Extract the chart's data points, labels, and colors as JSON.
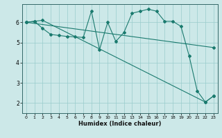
{
  "xlabel": "Humidex (Indice chaleur)",
  "bg_color": "#cce8e8",
  "grid_color": "#99cccc",
  "line_color": "#1a7a6e",
  "xlim": [
    -0.5,
    23.5
  ],
  "ylim": [
    1.5,
    6.9
  ],
  "xticks": [
    0,
    1,
    2,
    3,
    4,
    5,
    6,
    7,
    8,
    9,
    10,
    11,
    12,
    13,
    14,
    15,
    16,
    17,
    18,
    19,
    20,
    21,
    22,
    23
  ],
  "yticks": [
    2,
    3,
    4,
    5,
    6
  ],
  "line1_x": [
    0,
    1,
    2,
    3,
    4,
    5,
    6,
    7,
    8,
    9,
    10,
    11,
    12,
    13,
    14,
    15,
    16,
    17,
    18,
    19,
    20,
    21,
    22,
    23
  ],
  "line1_y": [
    6.0,
    6.05,
    5.7,
    5.4,
    5.35,
    5.3,
    5.28,
    5.25,
    6.55,
    4.65,
    6.0,
    5.05,
    5.5,
    6.45,
    6.55,
    6.65,
    6.55,
    6.05,
    6.05,
    5.8,
    4.35,
    2.6,
    2.05,
    2.35
  ],
  "line2_x": [
    0,
    1,
    2,
    22,
    23
  ],
  "line2_y": [
    6.0,
    6.05,
    6.1,
    2.05,
    2.35
  ],
  "line3_x": [
    0,
    23
  ],
  "line3_y": [
    6.0,
    4.75
  ]
}
